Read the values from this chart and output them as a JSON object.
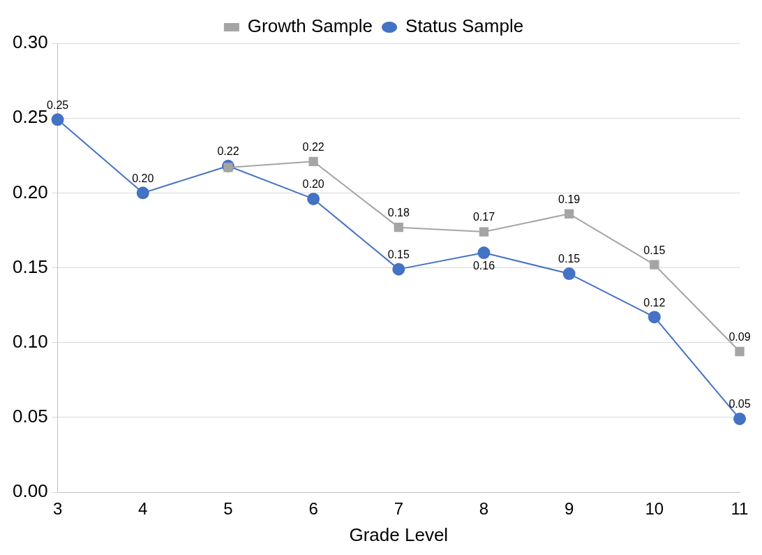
{
  "chart_data": {
    "type": "line",
    "xlabel": "Grade Level",
    "categories": [
      "3",
      "4",
      "5",
      "6",
      "7",
      "8",
      "9",
      "10",
      "11"
    ],
    "series": [
      {
        "name": "Growth Sample",
        "color": "#a5a5a5",
        "marker": "square",
        "values": [
          null,
          null,
          0.217,
          0.221,
          0.177,
          0.174,
          0.186,
          0.152,
          0.094
        ],
        "value_labels": [
          null,
          null,
          null,
          "0.22",
          "0.18",
          "0.17",
          "0.19",
          "0.15",
          "0.09"
        ]
      },
      {
        "name": "Status Sample",
        "color": "#4472c4",
        "marker": "circle",
        "values": [
          0.249,
          0.2,
          0.218,
          0.196,
          0.149,
          0.16,
          0.146,
          0.117,
          0.049
        ],
        "value_labels": [
          "0.25",
          "0.20",
          "0.22",
          "0.20",
          "0.15",
          "0.16",
          "0.15",
          "0.12",
          "0.05"
        ]
      }
    ],
    "ylim": [
      0,
      0.3
    ],
    "yticks": [
      {
        "value": 0,
        "label": "0.00"
      },
      {
        "value": 0.05,
        "label": "0.05"
      },
      {
        "value": 0.1,
        "label": "0.10"
      },
      {
        "value": 0.15,
        "label": "0.15"
      },
      {
        "value": 0.2,
        "label": "0.20"
      },
      {
        "value": 0.25,
        "label": "0.25"
      },
      {
        "value": 0.3,
        "label": "0.30"
      }
    ],
    "grid": "y",
    "legend": "top",
    "line_style": "solid"
  }
}
